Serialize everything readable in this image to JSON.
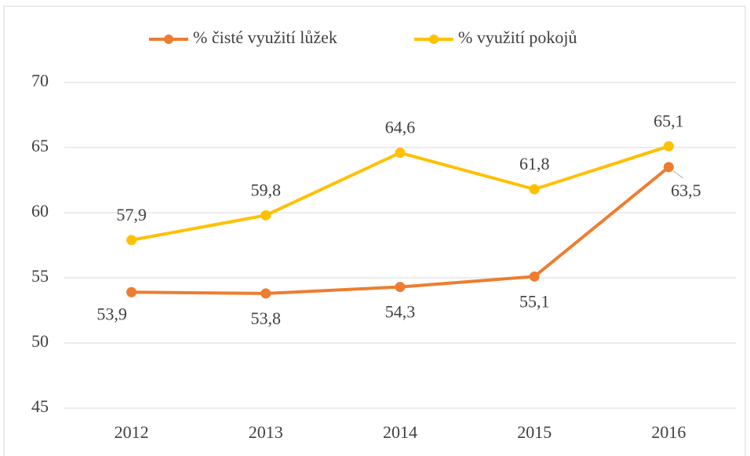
{
  "chart_data": {
    "type": "line",
    "categories": [
      "2012",
      "2013",
      "2014",
      "2015",
      "2016"
    ],
    "series": [
      {
        "name": "% čisté využití lůžek",
        "color": "#ED7D31",
        "values": [
          53.9,
          53.8,
          54.3,
          55.1,
          63.5
        ],
        "value_labels": [
          "53,9",
          "53,8",
          "54,3",
          "55,1",
          "63,5"
        ]
      },
      {
        "name": "% využití pokojů",
        "color": "#FFC000",
        "values": [
          57.9,
          59.8,
          64.6,
          61.8,
          65.1
        ],
        "value_labels": [
          "57,9",
          "59,8",
          "64,6",
          "61,8",
          "65,1"
        ]
      }
    ],
    "ylim": [
      45,
      70
    ],
    "yticks": [
      45,
      50,
      55,
      60,
      65,
      70
    ],
    "grid": true,
    "legend": "top"
  }
}
